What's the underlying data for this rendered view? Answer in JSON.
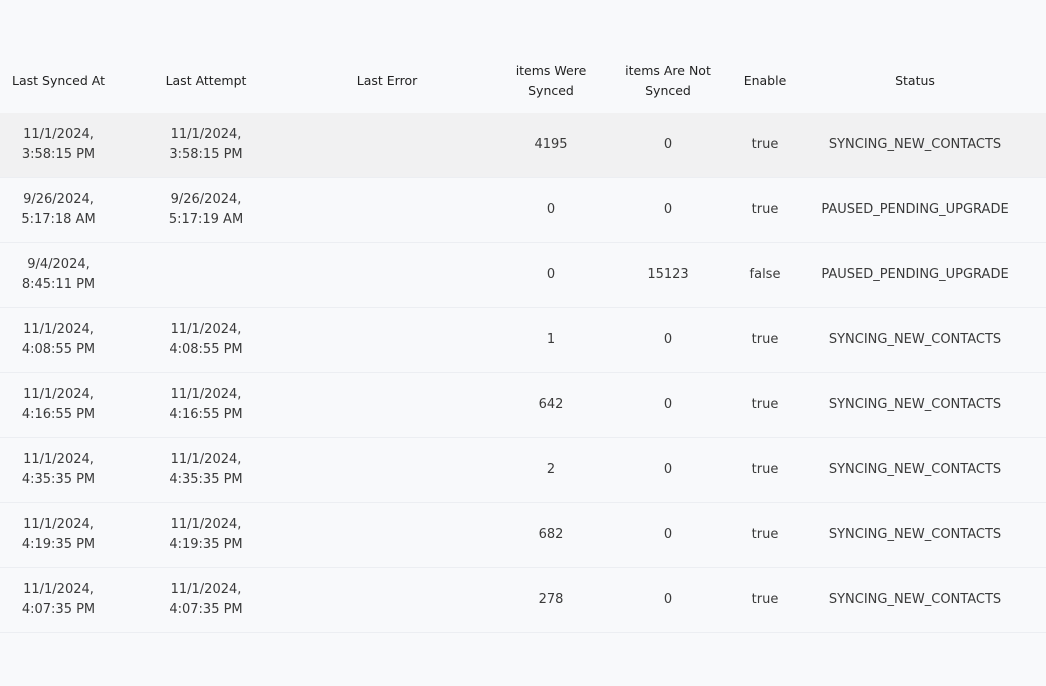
{
  "table": {
    "columns": [
      "Last Synced At",
      "Last Attempt",
      "Last Error",
      "items Were Synced",
      "items Are Not Synced",
      "Enable",
      "Status"
    ],
    "rows": [
      [
        "11/1/2024, 3:58:15 PM",
        "11/1/2024, 3:58:15 PM",
        null,
        4195,
        0,
        "true",
        "SYNCING_NEW_CONTACTS"
      ],
      [
        "9/26/2024, 5:17:18 AM",
        "9/26/2024, 5:17:19 AM",
        null,
        0,
        0,
        "true",
        "PAUSED_PENDING_UPGRADE"
      ],
      [
        "9/4/2024, 8:45:11 PM",
        null,
        null,
        0,
        15123,
        "false",
        "PAUSED_PENDING_UPGRADE"
      ],
      [
        "11/1/2024, 4:08:55 PM",
        "11/1/2024, 4:08:55 PM",
        null,
        1,
        0,
        "true",
        "SYNCING_NEW_CONTACTS"
      ],
      [
        "11/1/2024, 4:16:55 PM",
        "11/1/2024, 4:16:55 PM",
        null,
        642,
        0,
        "true",
        "SYNCING_NEW_CONTACTS"
      ],
      [
        "11/1/2024, 4:35:35 PM",
        "11/1/2024, 4:35:35 PM",
        null,
        2,
        0,
        "true",
        "SYNCING_NEW_CONTACTS"
      ],
      [
        "11/1/2024, 4:19:35 PM",
        "11/1/2024, 4:19:35 PM",
        null,
        682,
        0,
        "true",
        "SYNCING_NEW_CONTACTS"
      ],
      [
        "11/1/2024, 4:07:35 PM",
        "11/1/2024, 4:07:35 PM",
        null,
        278,
        0,
        "true",
        "SYNCING_NEW_CONTACTS"
      ]
    ]
  }
}
